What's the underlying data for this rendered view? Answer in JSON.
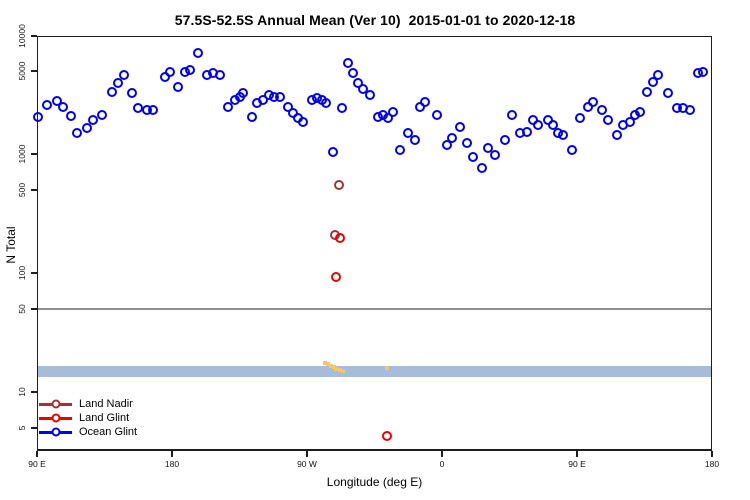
{
  "chart_data": {
    "type": "scatter",
    "title": "57.5S-52.5S Annual Mean (Ver 10)  2015-01-01 to 2020-12-18",
    "xlabel": "Longitude (deg E)",
    "ylabel": "N Total",
    "y_scale": "log",
    "ylim": [
      3.2,
      10000
    ],
    "y_ticks": [
      10000,
      5000,
      1000,
      500,
      100,
      50,
      10,
      5
    ],
    "y_tick_labels": [
      "10000",
      "5000",
      "1000",
      "500",
      "100",
      "50",
      "10",
      "5"
    ],
    "x_axis": {
      "note": "x values below are degrees east of the left edge (90 E); axis spans 450 deg",
      "span_deg": 450,
      "tick_interval_deg": 90,
      "tick_labels": [
        "90 E",
        "180",
        "90 W",
        "0",
        "90 E",
        "180"
      ]
    },
    "grid": "off",
    "reference_line": {
      "value": 50,
      "color": "#8f8f8f"
    },
    "band": {
      "from": 13.4,
      "to": 16.6,
      "color": "#a7bcd9"
    },
    "legend": {
      "position": "bottom-left",
      "entries": [
        {
          "label": "Land Nadir",
          "color": "#9e3434"
        },
        {
          "label": "Land Glint",
          "color": "#ee0000"
        },
        {
          "label": "Ocean Glint",
          "color": "#0000ee"
        }
      ]
    },
    "series": [
      {
        "id": "ocean-glint",
        "name": "Ocean Glint",
        "marker": "open-circle",
        "color": "#0000ee",
        "points": [
          [
            0.7,
            2050
          ],
          [
            6.7,
            2600
          ],
          [
            13.3,
            2790
          ],
          [
            17.3,
            2470
          ],
          [
            22.7,
            2090
          ],
          [
            26.7,
            1510
          ],
          [
            33.3,
            1650
          ],
          [
            37.3,
            1930
          ],
          [
            43.3,
            2130
          ],
          [
            50,
            3320
          ],
          [
            54,
            3950
          ],
          [
            58,
            4600
          ],
          [
            63.3,
            3260
          ],
          [
            67.3,
            2430
          ],
          [
            73.3,
            2340
          ],
          [
            77.3,
            2340
          ],
          [
            85.3,
            4440
          ],
          [
            88.7,
            4880
          ],
          [
            94,
            3640
          ],
          [
            98.7,
            4880
          ],
          [
            102,
            5080
          ],
          [
            107.3,
            7080
          ],
          [
            113.3,
            4600
          ],
          [
            117.3,
            4790
          ],
          [
            122,
            4600
          ],
          [
            127.3,
            2470
          ],
          [
            132,
            2840
          ],
          [
            135.3,
            3010
          ],
          [
            137.3,
            3260
          ],
          [
            143.3,
            2050
          ],
          [
            146.7,
            2680
          ],
          [
            150.7,
            2840
          ],
          [
            154.7,
            3130
          ],
          [
            158,
            3010
          ],
          [
            162,
            3010
          ],
          [
            167.3,
            2470
          ],
          [
            170.7,
            2200
          ],
          [
            174,
            2000
          ],
          [
            177.3,
            1850
          ],
          [
            183.3,
            2840
          ],
          [
            186.7,
            2950
          ],
          [
            190,
            2840
          ],
          [
            192.7,
            2680
          ],
          [
            197.3,
            1030
          ],
          [
            203.3,
            2430
          ],
          [
            207.3,
            5870
          ],
          [
            210.7,
            4790
          ],
          [
            214,
            3950
          ],
          [
            217.3,
            3490
          ],
          [
            222,
            3130
          ],
          [
            227.3,
            2050
          ],
          [
            230.7,
            2130
          ],
          [
            234,
            2000
          ],
          [
            237.3,
            2240
          ],
          [
            242,
            1080
          ],
          [
            247.3,
            1510
          ],
          [
            252,
            1300
          ],
          [
            255.3,
            2470
          ],
          [
            258.7,
            2740
          ],
          [
            266.7,
            2130
          ],
          [
            273.3,
            1190
          ],
          [
            276.7,
            1360
          ],
          [
            282,
            1690
          ],
          [
            286.7,
            1240
          ],
          [
            290.7,
            940
          ],
          [
            296.7,
            760
          ],
          [
            300.7,
            1120
          ],
          [
            305.3,
            980
          ],
          [
            312,
            1300
          ],
          [
            316.7,
            2130
          ],
          [
            322,
            1510
          ],
          [
            326.7,
            1530
          ],
          [
            330.7,
            1930
          ],
          [
            334,
            1750
          ],
          [
            340.7,
            1930
          ],
          [
            344,
            1750
          ],
          [
            347.3,
            1510
          ],
          [
            350.7,
            1440
          ],
          [
            356.7,
            1080
          ],
          [
            362,
            2000
          ],
          [
            367.3,
            2470
          ],
          [
            370.7,
            2740
          ],
          [
            376.7,
            2340
          ],
          [
            380.7,
            1930
          ],
          [
            386.7,
            1440
          ],
          [
            390.7,
            1750
          ],
          [
            395.3,
            1850
          ],
          [
            398.7,
            2130
          ],
          [
            402,
            2240
          ],
          [
            406.7,
            3320
          ],
          [
            410.7,
            4030
          ],
          [
            414,
            4600
          ],
          [
            420.7,
            3260
          ],
          [
            426.7,
            2430
          ],
          [
            430.7,
            2430
          ],
          [
            435.3,
            2340
          ],
          [
            440.7,
            4790
          ],
          [
            444,
            4880
          ]
        ]
      },
      {
        "id": "land-nadir",
        "name": "Land Nadir",
        "marker": "open-circle",
        "color": "#9e3434",
        "points": [
          [
            201.3,
            550
          ],
          [
            198.7,
            210
          ]
        ]
      },
      {
        "id": "land-glint",
        "name": "Land Glint",
        "marker": "open-circle",
        "color": "#ee0000",
        "points": [
          [
            202,
            195
          ],
          [
            199.3,
            92
          ],
          [
            233.3,
            4.3
          ]
        ]
      },
      {
        "id": "yellow-flag",
        "name": "yellow band markers",
        "marker": "small-square",
        "color": "#f4c869",
        "points": [
          [
            192,
            17.5
          ],
          [
            194,
            17.2
          ],
          [
            196,
            16.5
          ],
          [
            198,
            16.2
          ],
          [
            199.3,
            15.6
          ],
          [
            202,
            15.3
          ],
          [
            204,
            15.0
          ],
          [
            233.3,
            15.9
          ]
        ]
      }
    ]
  }
}
